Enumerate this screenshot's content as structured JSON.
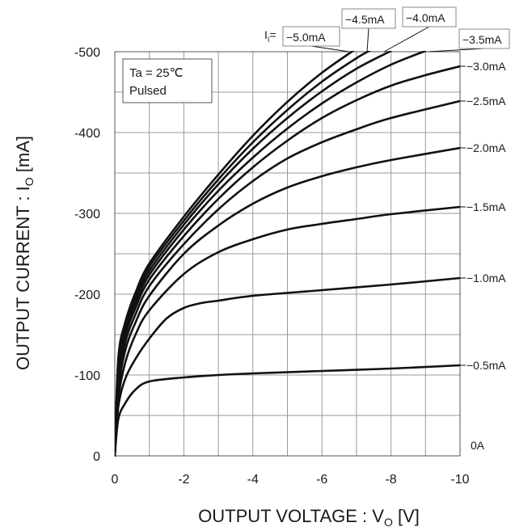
{
  "chart_data": {
    "type": "line",
    "xlabel": "OUTPUT VOLTAGE : V",
    "xlabel_sub": "O",
    "xlabel_unit": " [V]",
    "ylabel": "OUTPUT CURRENT : I",
    "ylabel_sub": "O",
    "ylabel_unit": " [mA]",
    "xlim": [
      0,
      -10
    ],
    "ylim": [
      0,
      -500
    ],
    "x_ticks": [
      0,
      -2,
      -4,
      -6,
      -8,
      -10
    ],
    "x_tick_labels": [
      "0",
      "-2",
      "-4",
      "-6",
      "-8",
      "-10"
    ],
    "y_ticks": [
      0,
      -100,
      -200,
      -300,
      -400,
      -500
    ],
    "y_tick_labels": [
      "0",
      "-100",
      "-200",
      "-300",
      "-400",
      "-500"
    ],
    "grid": true,
    "conditions": [
      "Ta = 25℃",
      "Pulsed"
    ],
    "legend_prefix": "I",
    "legend_prefix_sub": "I",
    "legend_prefix_eq": "=",
    "series": [
      {
        "name": "0A",
        "x": [
          0,
          -10
        ],
        "y": [
          0,
          0
        ]
      },
      {
        "name": "−0.5mA",
        "x": [
          0,
          -0.1,
          -0.3,
          -0.6,
          -1,
          -2,
          -3,
          -4,
          -6,
          -8,
          -10
        ],
        "y": [
          0,
          -45,
          -65,
          -82,
          -92,
          -97,
          -100,
          -102,
          -105,
          -108,
          -112
        ]
      },
      {
        "name": "−1.0mA",
        "x": [
          0,
          -0.1,
          -0.3,
          -0.6,
          -1,
          -1.5,
          -2,
          -2.5,
          -3,
          -4,
          -6,
          -8,
          -10
        ],
        "y": [
          0,
          -60,
          -95,
          -120,
          -145,
          -170,
          -183,
          -189,
          -192,
          -198,
          -205,
          -212,
          -220
        ]
      },
      {
        "name": "−1.5mA",
        "x": [
          0,
          -0.1,
          -0.3,
          -0.6,
          -1,
          -2,
          -3,
          -4,
          -5,
          -6,
          -7,
          -8,
          -10
        ],
        "y": [
          0,
          -70,
          -115,
          -150,
          -180,
          -225,
          -252,
          -268,
          -280,
          -287,
          -293,
          -299,
          -308
        ]
      },
      {
        "name": "−2.0mA",
        "x": [
          0,
          -0.1,
          -0.3,
          -0.6,
          -1,
          -2,
          -3,
          -4,
          -5,
          -6,
          -7,
          -8,
          -10
        ],
        "y": [
          0,
          -80,
          -130,
          -165,
          -198,
          -250,
          -285,
          -312,
          -332,
          -346,
          -357,
          -366,
          -381
        ]
      },
      {
        "name": "−2.5mA",
        "x": [
          0,
          -0.1,
          -0.3,
          -0.6,
          -1,
          -2,
          -3,
          -4,
          -5,
          -6,
          -7,
          -8,
          -10
        ],
        "y": [
          0,
          -90,
          -140,
          -175,
          -210,
          -262,
          -305,
          -340,
          -368,
          -388,
          -404,
          -418,
          -439
        ]
      },
      {
        "name": "−3.0mA",
        "x": [
          0,
          -0.1,
          -0.3,
          -0.6,
          -1,
          -2,
          -3,
          -4,
          -5,
          -6,
          -7,
          -8,
          -9,
          -10
        ],
        "y": [
          0,
          -100,
          -148,
          -183,
          -218,
          -272,
          -318,
          -357,
          -390,
          -418,
          -440,
          -458,
          -471,
          -482
        ]
      },
      {
        "name": "−3.5mA",
        "x": [
          0,
          -0.1,
          -0.3,
          -0.6,
          -1,
          -2,
          -3,
          -4,
          -5,
          -6,
          -7,
          -8,
          -9
        ],
        "y": [
          0,
          -105,
          -153,
          -189,
          -224,
          -280,
          -328,
          -369,
          -405,
          -436,
          -462,
          -484,
          -501
        ]
      },
      {
        "name": "−4.0mA",
        "x": [
          0,
          -0.1,
          -0.3,
          -0.6,
          -1,
          -2,
          -3,
          -4,
          -5,
          -6,
          -7,
          -8
        ],
        "y": [
          0,
          -110,
          -157,
          -194,
          -229,
          -286,
          -336,
          -380,
          -418,
          -451,
          -479,
          -501
        ]
      },
      {
        "name": "−4.5mA",
        "x": [
          0,
          -0.1,
          -0.3,
          -0.6,
          -1,
          -2,
          -3,
          -4,
          -5,
          -6,
          -7,
          -7.5
        ],
        "y": [
          0,
          -115,
          -161,
          -198,
          -234,
          -291,
          -342,
          -388,
          -428,
          -463,
          -492,
          -504
        ]
      },
      {
        "name": "−5.0mA",
        "x": [
          0,
          -0.1,
          -0.3,
          -0.6,
          -1,
          -2,
          -3,
          -4,
          -5,
          -6,
          -7
        ],
        "y": [
          0,
          -120,
          -165,
          -202,
          -238,
          -296,
          -348,
          -396,
          -438,
          -474,
          -504
        ]
      }
    ]
  }
}
